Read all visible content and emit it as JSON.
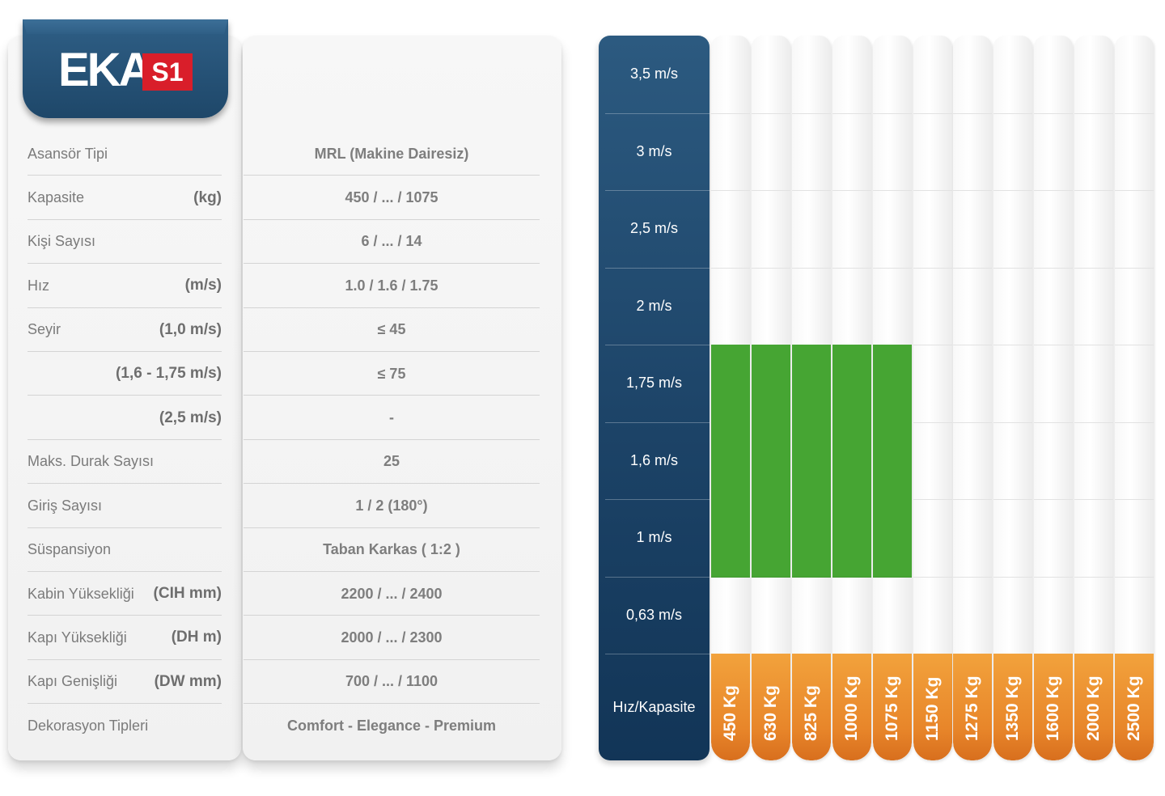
{
  "logo": {
    "brand": "EKA",
    "model": "S1"
  },
  "specs": [
    {
      "name": "Asansör Tipi",
      "unit": "",
      "value": "MRL (Makine Dairesiz)"
    },
    {
      "name": "Kapasite",
      "unit": "(kg)",
      "value": "450 / ... / 1075"
    },
    {
      "name": "Kişi Sayısı",
      "unit": "",
      "value": "6  / ... / 14"
    },
    {
      "name": "Hız",
      "unit": "(m/s)",
      "value": "1.0 / 1.6 / 1.75"
    },
    {
      "name": "Seyir",
      "unit": "(1,0 m/s)",
      "value": "≤ 45"
    },
    {
      "name": "",
      "unit": "(1,6 - 1,75 m/s)",
      "value": "≤ 75"
    },
    {
      "name": "",
      "unit": "(2,5 m/s)",
      "value": "-"
    },
    {
      "name": "Maks. Durak Sayısı",
      "unit": "",
      "value": "25"
    },
    {
      "name": "Giriş Sayısı",
      "unit": "",
      "value": "1 / 2 (180°)"
    },
    {
      "name": "Süspansiyon",
      "unit": "",
      "value": "Taban Karkas ( 1:2 )"
    },
    {
      "name": "Kabin Yüksekliği",
      "unit": "(CIH mm)",
      "value": "2200 / ... / 2400"
    },
    {
      "name": "Kapı Yüksekliği",
      "unit": "(DH m)",
      "value": "2000 / ... / 2300"
    },
    {
      "name": "Kapı Genişliği",
      "unit": "(DW mm)",
      "value": "700 / ... / 1100"
    },
    {
      "name": "Dekorasyon Tipleri",
      "unit": "",
      "value": "Comfort - Elegance - Premium"
    }
  ],
  "grid": {
    "speeds": [
      "3,5 m/s",
      "3 m/s",
      "2,5 m/s",
      "2  m/s",
      "1,75 m/s",
      "1,6  m/s",
      "1 m/s",
      "0,63 m/s"
    ],
    "header": "Hız/Kapasite",
    "capacities": [
      "450 Kg",
      "630 Kg",
      "825 Kg",
      "1000 Kg",
      "1075 Kg",
      "1150 Kg",
      "1275 Kg",
      "1350 Kg",
      "1600 Kg",
      "2000 Kg",
      "2500 Kg"
    ],
    "available": {
      "speeds": [
        "1,75 m/s",
        "1,6  m/s",
        "1 m/s"
      ],
      "capacities": [
        "450 Kg",
        "630 Kg",
        "825 Kg",
        "1000 Kg",
        "1075 Kg"
      ]
    },
    "colors": {
      "speed_column": "#1e4769",
      "available": "#46a533",
      "capacity_footer": "#e8862a"
    }
  }
}
